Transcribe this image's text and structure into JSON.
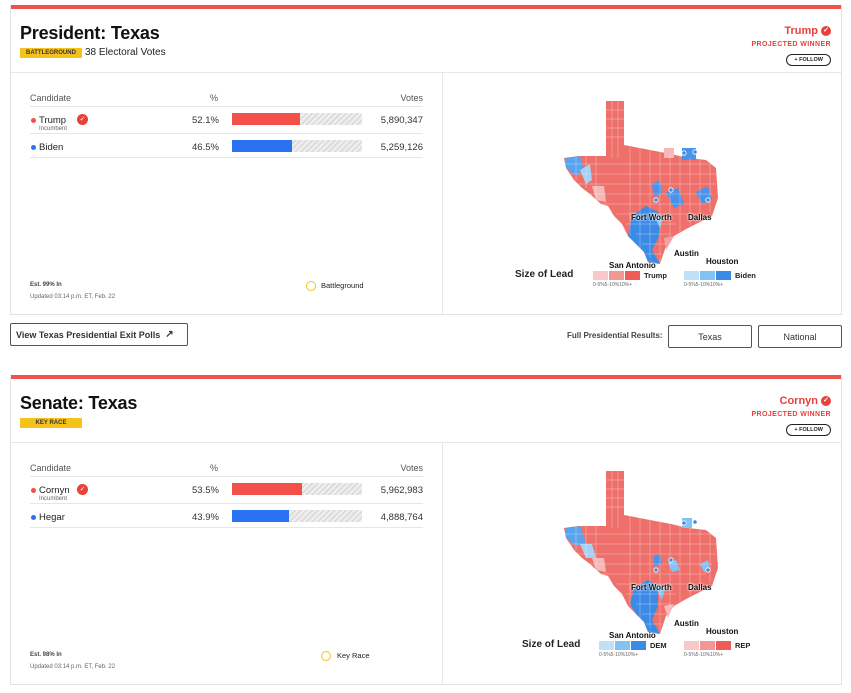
{
  "president": {
    "title": "President: Texas",
    "tag": "BATTLEGROUND",
    "electoral_votes": "38 Electoral Votes",
    "winner": "Trump",
    "projected": "PROJECTED WINNER",
    "follow": "+ FOLLOW",
    "headers": {
      "candidate": "Candidate",
      "pct": "%",
      "votes": "Votes"
    },
    "rows": [
      {
        "name": "Trump",
        "incumbent": "Incumbent",
        "pct": "52.1%",
        "pct_value": 52.1,
        "votes": "5,890,347",
        "color": "#f4504a"
      },
      {
        "name": "Biden",
        "incumbent": "",
        "pct": "46.5%",
        "pct_value": 46.5,
        "votes": "5,259,126",
        "color": "#2b72f2"
      }
    ],
    "est": "Est. 99% In",
    "updated": "Updated 03:14 p.m. ET, Feb. 22",
    "legend_label": "Battleground",
    "lead_title": "Size of Lead",
    "lead_ticks": "0-5%5-10%10%+",
    "lead_groups": [
      {
        "label": "Trump",
        "colors": [
          "#f9c9c9",
          "#f29696",
          "#ef5b57"
        ]
      },
      {
        "label": "Biden",
        "colors": [
          "#bfe0f7",
          "#83c3f3",
          "#3b8be6"
        ]
      }
    ],
    "cities": [
      "Fort Worth",
      "Dallas",
      "Austin",
      "Houston",
      "San Antonio"
    ]
  },
  "exit_polls": "View Texas Presidential Exit Polls",
  "full_results": {
    "label": "Full Presidential Results:",
    "buttons": [
      "Texas",
      "National"
    ]
  },
  "senate": {
    "title": "Senate: Texas",
    "tag": "KEY RACE",
    "winner": "Cornyn",
    "projected": "PROJECTED WINNER",
    "follow": "+ FOLLOW",
    "headers": {
      "candidate": "Candidate",
      "pct": "%",
      "votes": "Votes"
    },
    "rows": [
      {
        "name": "Cornyn",
        "incumbent": "Incumbent",
        "pct": "53.5%",
        "pct_value": 53.5,
        "votes": "5,962,983",
        "color": "#f4504a"
      },
      {
        "name": "Hegar",
        "incumbent": "",
        "pct": "43.9%",
        "pct_value": 43.9,
        "votes": "4,888,764",
        "color": "#2b72f2"
      }
    ],
    "est": "Est. 98% In",
    "updated": "Updated 03:14 p.m. ET, Feb. 22",
    "legend_label": "Key Race",
    "lead_title": "Size of Lead",
    "lead_ticks": "0-5%5-10%10%+",
    "lead_groups": [
      {
        "label": "DEM",
        "colors": [
          "#bfe0f7",
          "#83c3f3",
          "#3b8be6"
        ]
      },
      {
        "label": "REP",
        "colors": [
          "#f9c9c9",
          "#f29696",
          "#ef5b57"
        ]
      }
    ],
    "cities": [
      "Fort Worth",
      "Dallas",
      "Austin",
      "Houston",
      "San Antonio"
    ]
  }
}
